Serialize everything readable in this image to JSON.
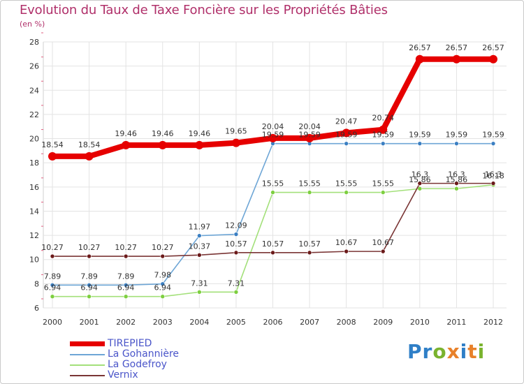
{
  "header": {
    "title": "Evolution du Taux de Taxe Foncière sur les Propriétés Bâties",
    "unit": "(en %)"
  },
  "logo": {
    "text": "Proxiti",
    "letters": [
      "P",
      "r",
      "o",
      "x",
      "i",
      "t",
      "i"
    ],
    "colors": [
      "#2f7fc7",
      "#2f7fc7",
      "#7ab32e",
      "#e8812a",
      "#2f7fc7",
      "#e8812a",
      "#7ab32e"
    ]
  },
  "chart_data": {
    "type": "line",
    "title": "Evolution du Taux de Taxe Foncière sur les Propriétés Bâties",
    "ylabel": "(en %)",
    "xlabel": "",
    "ylim": [
      6,
      28
    ],
    "yticks": [
      "6",
      "8",
      "10",
      "12",
      "14",
      "16",
      "18",
      "20",
      "22",
      "24",
      "26",
      "28"
    ],
    "categories": [
      "2000",
      "2001",
      "2002",
      "2003",
      "2004",
      "2005",
      "2006",
      "2007",
      "2008",
      "2009",
      "2010",
      "2011",
      "2012"
    ],
    "grid": true,
    "series": [
      {
        "name": "TIREPIED",
        "color": "#e60000",
        "marker": "#e60000",
        "values": [
          18.54,
          18.54,
          19.46,
          19.46,
          19.46,
          19.65,
          20.04,
          20.04,
          20.47,
          20.74,
          26.57,
          26.57,
          26.57
        ],
        "labels": [
          "18.54",
          "18.54",
          "19.46",
          "19.46",
          "19.46",
          "19.65",
          "20.04",
          "20.04",
          "20.47",
          "20.74",
          "26.57",
          "26.57",
          "26.57"
        ]
      },
      {
        "name": "La Gohannière",
        "color": "#6ea6d6",
        "marker": "#3b7fc2",
        "values": [
          7.89,
          7.89,
          7.89,
          7.98,
          11.97,
          12.09,
          19.59,
          19.59,
          19.59,
          19.59,
          19.59,
          19.59,
          19.59
        ],
        "labels": [
          "7.89",
          "7.89",
          "7.89",
          "7.98",
          "11.97",
          "12.09",
          "19.59",
          "19.59",
          "19.59",
          "19.59",
          "19.59",
          "19.59",
          "19.59"
        ]
      },
      {
        "name": "La Godefroy",
        "color": "#a3e07a",
        "marker": "#7dcf3f",
        "values": [
          6.94,
          6.94,
          6.94,
          6.94,
          7.31,
          7.31,
          15.55,
          15.55,
          15.55,
          15.55,
          15.86,
          15.86,
          16.18
        ],
        "labels": [
          "6.94",
          "6.94",
          "6.94",
          "6.94",
          "7.31",
          "7.31",
          "15.55",
          "15.55",
          "15.55",
          "15.55",
          "15.86",
          "15.86",
          "16.18"
        ]
      },
      {
        "name": "Vernix",
        "color": "#7a3535",
        "marker": "#6b1a1a",
        "values": [
          10.27,
          10.27,
          10.27,
          10.27,
          10.37,
          10.57,
          10.57,
          10.57,
          10.67,
          10.67,
          16.3,
          16.3,
          16.3
        ],
        "labels": [
          "10.27",
          "10.27",
          "10.27",
          "10.27",
          "10.37",
          "10.57",
          "10.57",
          "10.57",
          "10.67",
          "10.67",
          "16.3",
          "16.3",
          "16.3"
        ]
      }
    ]
  }
}
